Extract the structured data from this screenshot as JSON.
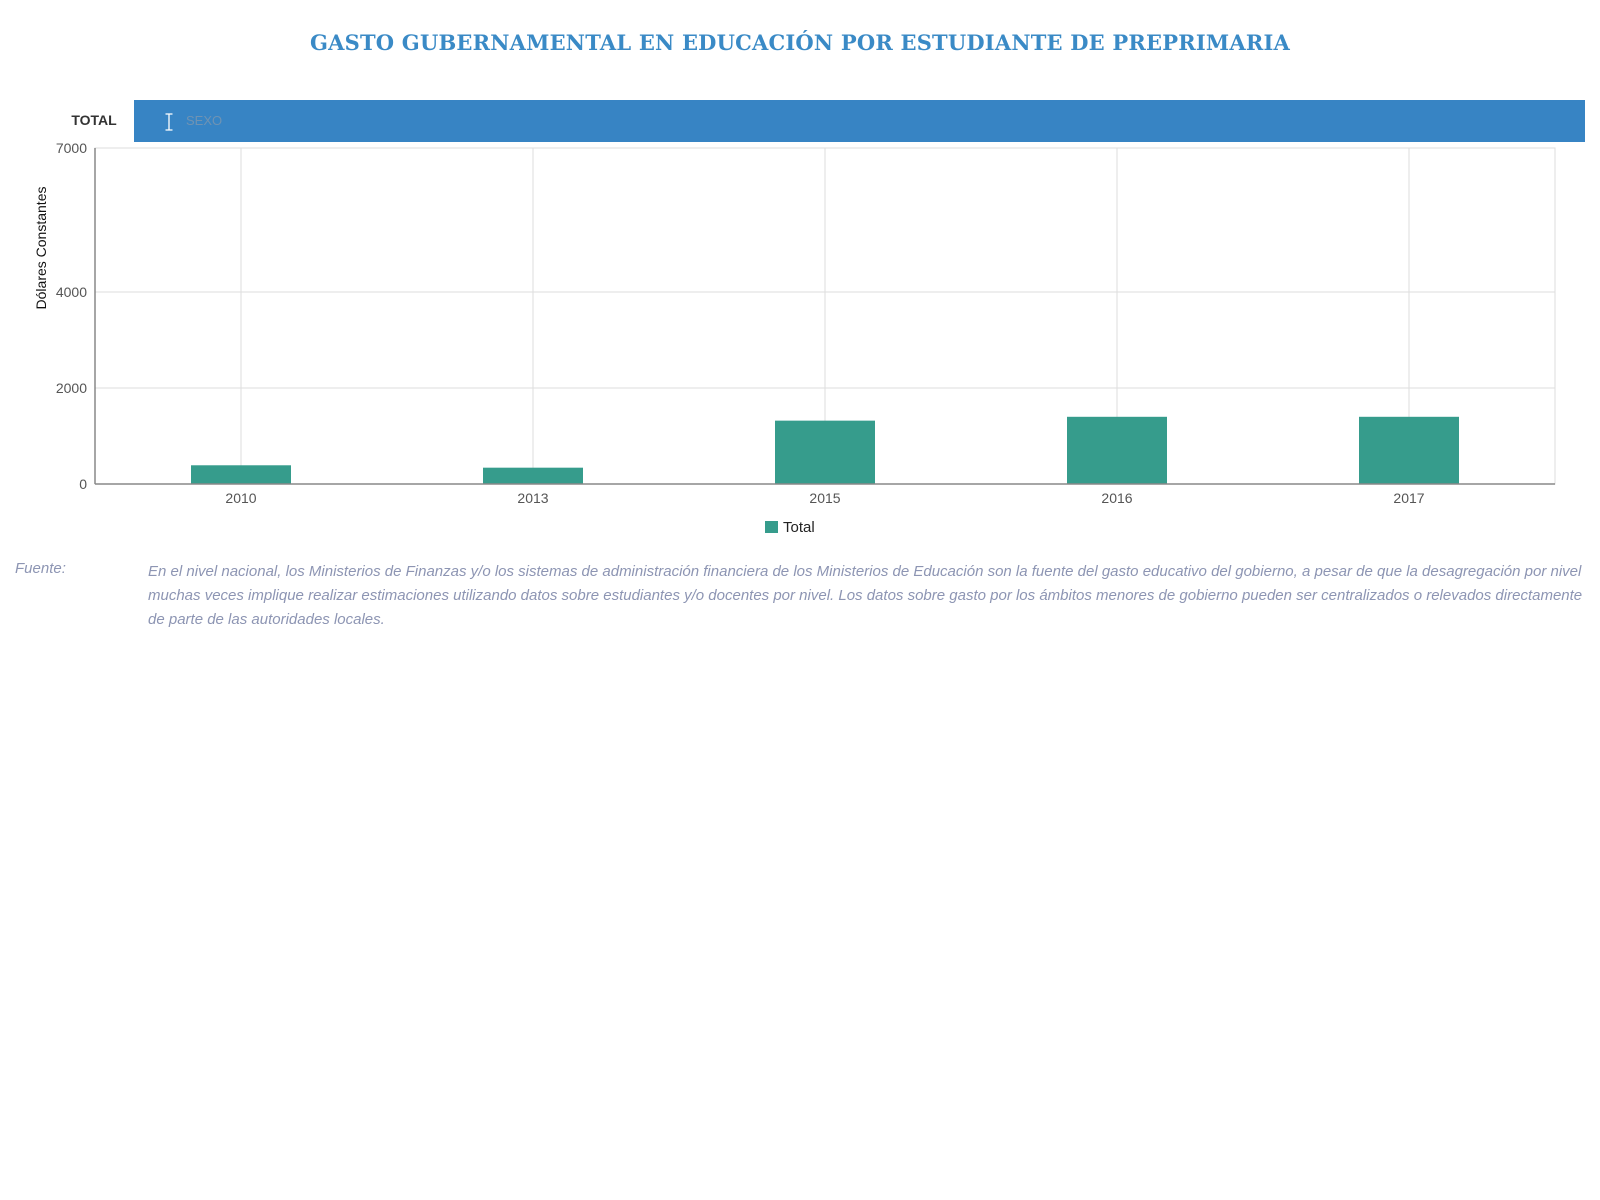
{
  "title": "GASTO GUBERNAMENTAL EN EDUCACIÓN POR ESTUDIANTE DE PREPRIMARIA",
  "tabs": {
    "total_label": "TOTAL",
    "sexo_label": "SEXO"
  },
  "source": {
    "label": "Fuente:",
    "text": "En el nivel nacional, los Ministerios de Finanzas y/o los sistemas de administración financiera de los Ministerios de Educación son la fuente del gasto educativo del gobierno, a pesar de que la desagregación por nivel muchas veces implique realizar estimaciones utilizando datos sobre estudiantes y/o docentes por nivel. Los datos sobre gasto por los ámbitos menores de gobierno pueden ser centralizados o relevados directamente de parte de las autoridades locales."
  },
  "colors": {
    "title": "#3a8ac6",
    "tab_bar": "#3784c4",
    "bar": "#369c8c",
    "grid": "#dddddd",
    "axis": "#888888"
  },
  "chart_data": {
    "type": "bar",
    "categories": [
      "2010",
      "2013",
      "2015",
      "2016",
      "2017"
    ],
    "series": [
      {
        "name": "Total",
        "values": [
          390,
          340,
          1320,
          1400,
          1400
        ],
        "color": "#369c8c"
      }
    ],
    "ylabel": "Dólares Constantes",
    "ylim": [
      0,
      7000
    ],
    "yticks": [
      0,
      2000,
      4000,
      7000
    ],
    "grid": true,
    "legend": "bottom-center"
  }
}
